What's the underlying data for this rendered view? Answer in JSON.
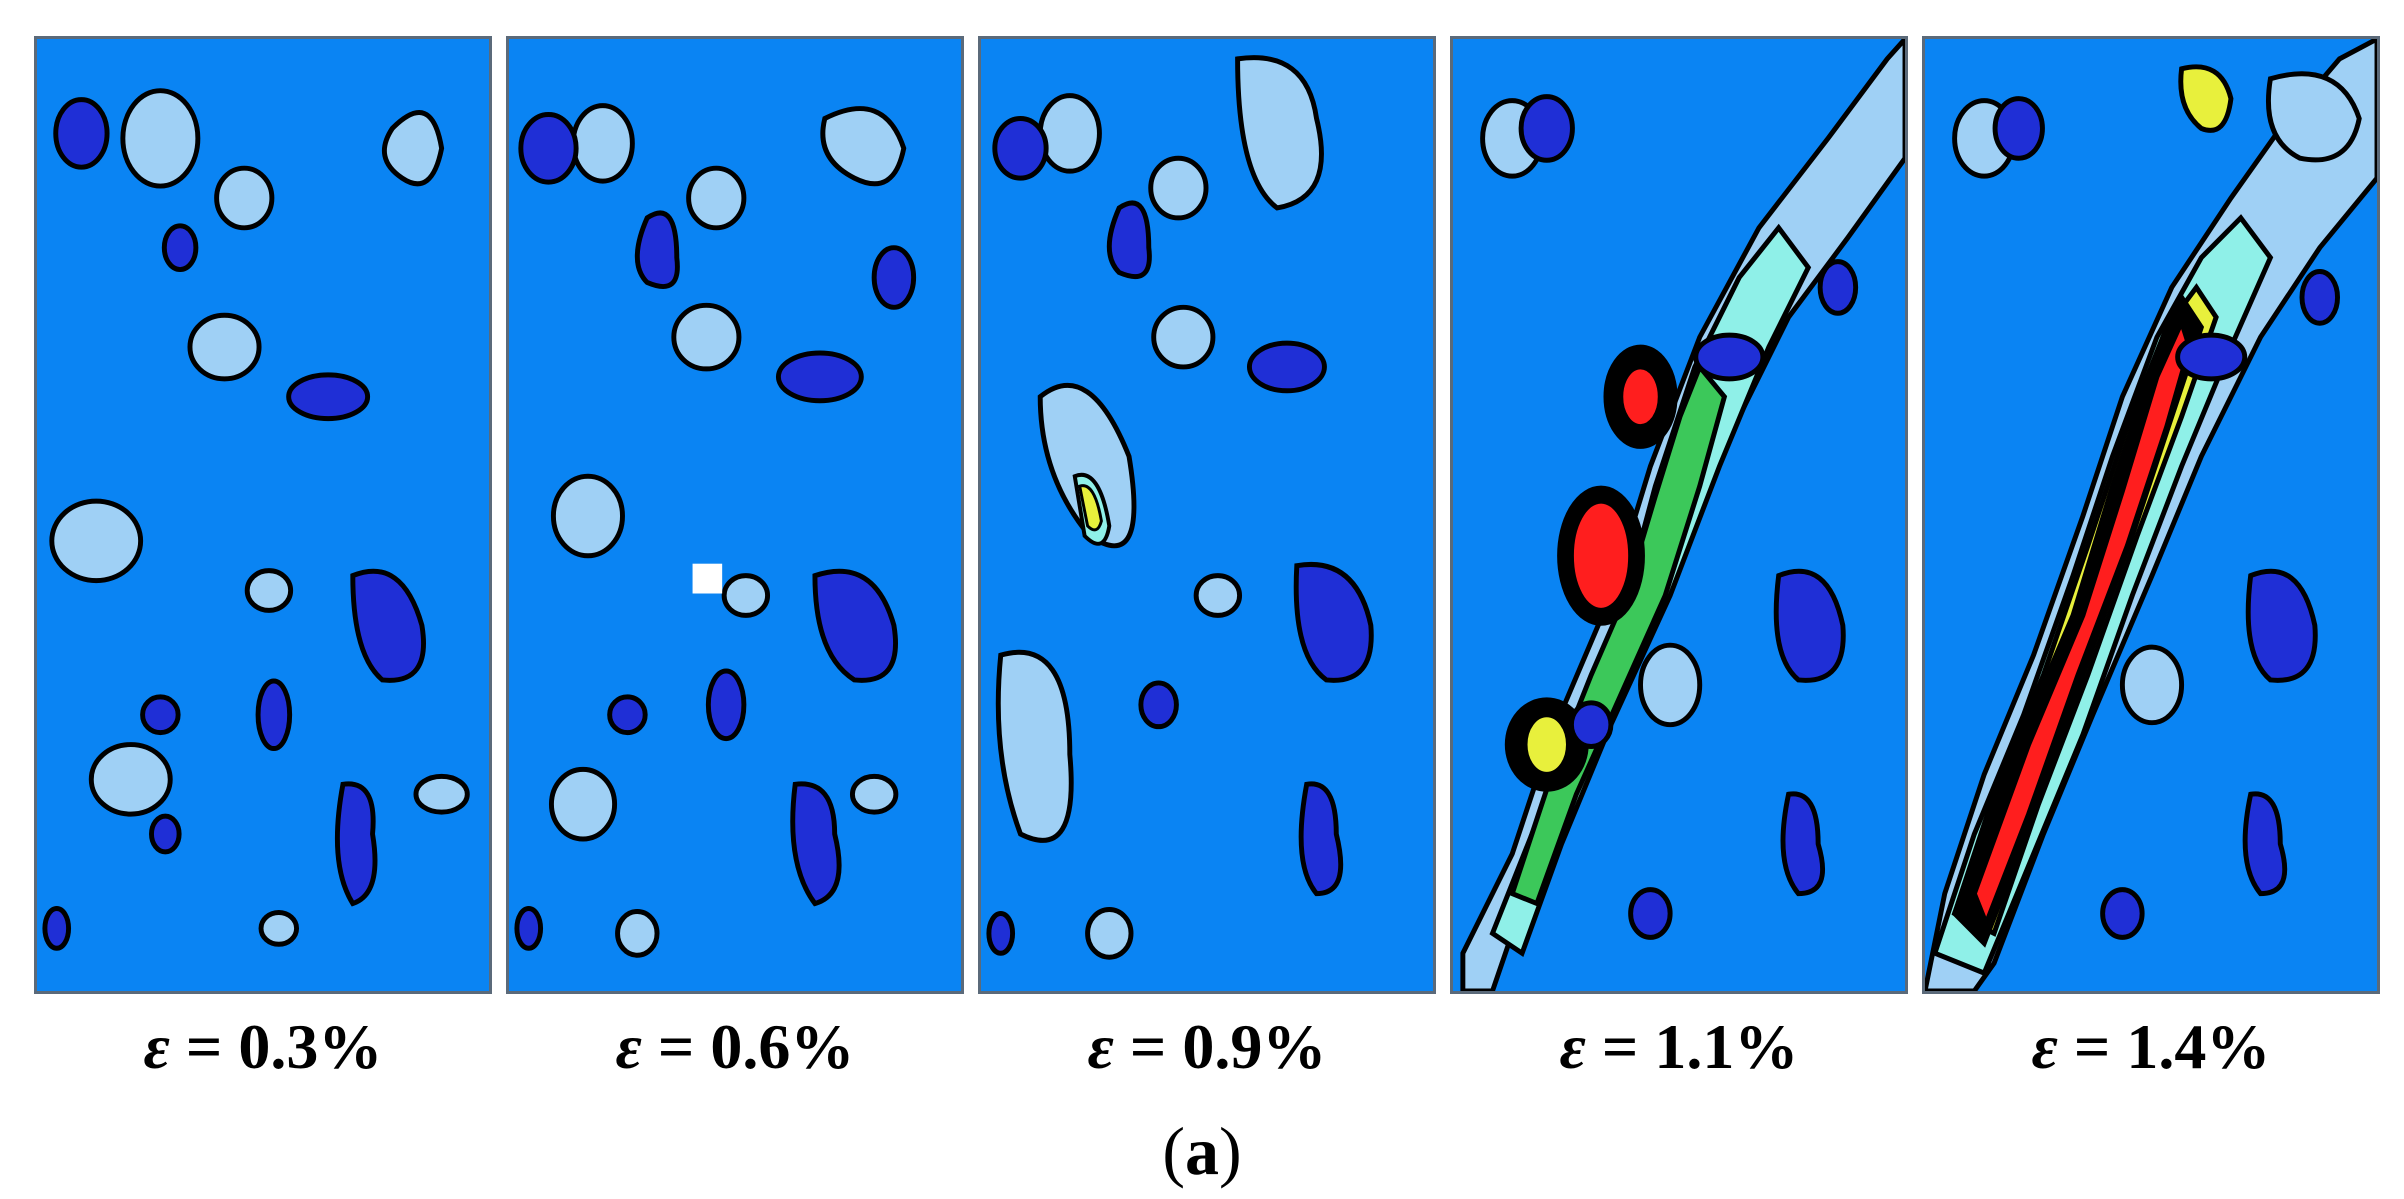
{
  "figure": {
    "subfigure_label": "a",
    "panels": [
      {
        "symbol": "ε",
        "value_text": "= 0.3%"
      },
      {
        "symbol": "ε",
        "value_text": "= 0.6%"
      },
      {
        "symbol": "ε",
        "value_text": "= 0.9%"
      },
      {
        "symbol": "ε",
        "value_text": "= 1.1%"
      },
      {
        "symbol": "ε",
        "value_text": "= 1.4%"
      }
    ]
  },
  "colors": {
    "background_blue": "#0a84f3",
    "dark_blue": "#1f2fd6",
    "light_blue": "#9fd0f5",
    "cyan": "#8ff0e8",
    "green": "#3cc85a",
    "yellow": "#e8f03c",
    "red": "#ff1e1e",
    "outline": "#000000"
  }
}
